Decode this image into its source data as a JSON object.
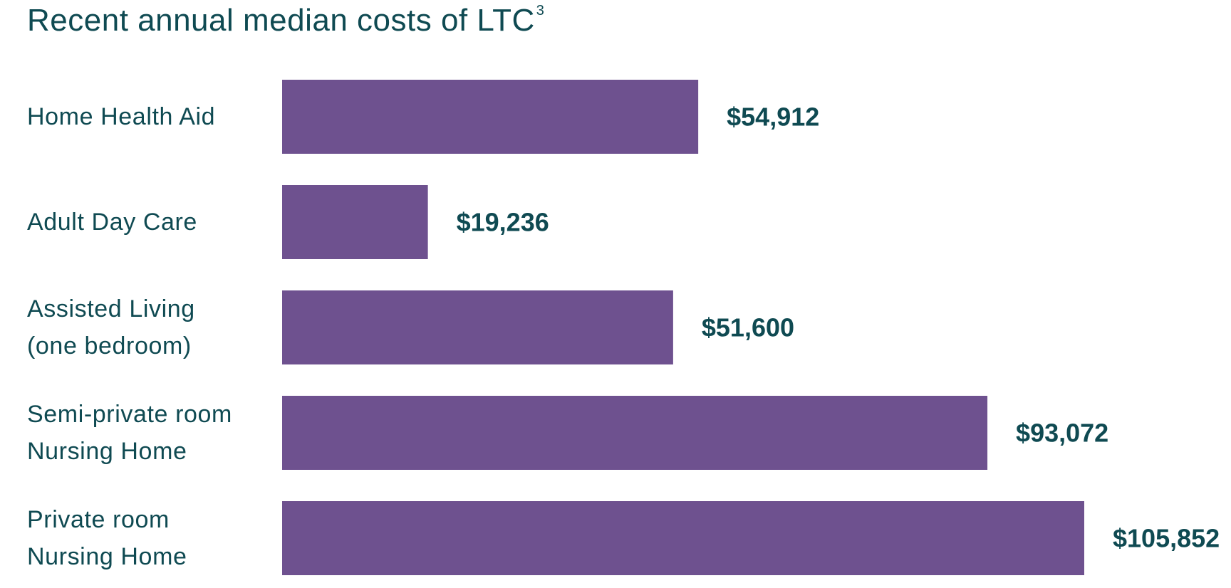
{
  "colors": {
    "text": "#0f4a52",
    "bar": "#6e518f",
    "background": "#ffffff"
  },
  "chart_data": {
    "type": "bar",
    "orientation": "horizontal",
    "title": "Recent annual median costs of LTC",
    "title_superscript": "3",
    "categories": [
      [
        "Home Health Aid"
      ],
      [
        "Adult Day Care"
      ],
      [
        "Assisted Living",
        "(one bedroom)"
      ],
      [
        "Semi-private room",
        "Nursing Home"
      ],
      [
        "Private room",
        "Nursing Home"
      ]
    ],
    "values": [
      54912,
      19236,
      51600,
      93072,
      105852
    ],
    "value_labels": [
      "$54,912",
      "$19,236",
      "$51,600",
      "$93,072",
      "$105,852"
    ],
    "xlim": [
      0,
      105852
    ],
    "grid": false,
    "legend": "none"
  }
}
